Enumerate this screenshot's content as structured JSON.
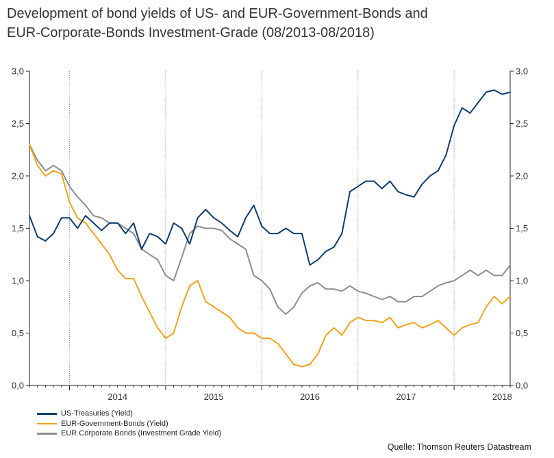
{
  "title": {
    "line1": "Development of bond yields of US- and EUR-Government-Bonds and",
    "line2": "EUR-Corporate-Bonds Investment-Grade (08/2013-08/2018)"
  },
  "source": "Quelle: Thomson Reuters Datastream",
  "chart_data": {
    "type": "line",
    "title": "Development of bond yields of US- and EUR-Government-Bonds and EUR-Corporate-Bonds Investment-Grade (08/2013-08/2018)",
    "xlabel": "",
    "ylabel": "",
    "x_ticks": [
      "2014",
      "2015",
      "2016",
      "2017",
      "2018"
    ],
    "y_ticks": [
      "0,0",
      "0,5",
      "1,0",
      "1,5",
      "2,0",
      "2,5",
      "3,0"
    ],
    "ylim": [
      0,
      3
    ],
    "xlim": [
      "2013-08",
      "2018-08"
    ],
    "grid": "vertical dotted lines at year boundaries",
    "dual_y_axis": true,
    "legend_position": "bottom-left",
    "colors": {
      "us": "#0b3a6e",
      "eur_gov": "#f2a31c",
      "eur_corp": "#8c8c8c",
      "axis": "#222222",
      "grid": "#999999"
    },
    "x": [
      "2013-08",
      "2013-09",
      "2013-10",
      "2013-11",
      "2013-12",
      "2014-01",
      "2014-02",
      "2014-03",
      "2014-04",
      "2014-05",
      "2014-06",
      "2014-07",
      "2014-08",
      "2014-09",
      "2014-10",
      "2014-11",
      "2014-12",
      "2015-01",
      "2015-02",
      "2015-03",
      "2015-04",
      "2015-05",
      "2015-06",
      "2015-07",
      "2015-08",
      "2015-09",
      "2015-10",
      "2015-11",
      "2015-12",
      "2016-01",
      "2016-02",
      "2016-03",
      "2016-04",
      "2016-05",
      "2016-06",
      "2016-07",
      "2016-08",
      "2016-09",
      "2016-10",
      "2016-11",
      "2016-12",
      "2017-01",
      "2017-02",
      "2017-03",
      "2017-04",
      "2017-05",
      "2017-06",
      "2017-07",
      "2017-08",
      "2017-09",
      "2017-10",
      "2017-11",
      "2017-12",
      "2018-01",
      "2018-02",
      "2018-03",
      "2018-04",
      "2018-05",
      "2018-06",
      "2018-07",
      "2018-08"
    ],
    "series": [
      {
        "name": "US-Treasuries (Yield)",
        "color": "#0b3a6e",
        "values": [
          1.62,
          1.42,
          1.38,
          1.45,
          1.6,
          1.6,
          1.5,
          1.62,
          1.55,
          1.48,
          1.55,
          1.55,
          1.45,
          1.55,
          1.3,
          1.45,
          1.42,
          1.35,
          1.55,
          1.5,
          1.35,
          1.6,
          1.68,
          1.6,
          1.55,
          1.48,
          1.42,
          1.6,
          1.72,
          1.52,
          1.45,
          1.45,
          1.5,
          1.45,
          1.45,
          1.15,
          1.2,
          1.28,
          1.32,
          1.45,
          1.85,
          1.9,
          1.95,
          1.95,
          1.88,
          1.95,
          1.85,
          1.82,
          1.8,
          1.92,
          2.0,
          2.05,
          2.2,
          2.48,
          2.65,
          2.6,
          2.7,
          2.8,
          2.82,
          2.78,
          2.8
        ]
      },
      {
        "name": "EUR-Government-Bonds (Yield)",
        "color": "#f2a31c",
        "values": [
          2.3,
          2.1,
          2.0,
          2.05,
          2.02,
          1.75,
          1.6,
          1.55,
          1.45,
          1.35,
          1.25,
          1.1,
          1.02,
          1.02,
          0.85,
          0.7,
          0.55,
          0.45,
          0.5,
          0.75,
          0.95,
          1.0,
          0.8,
          0.75,
          0.7,
          0.65,
          0.55,
          0.5,
          0.5,
          0.45,
          0.45,
          0.4,
          0.3,
          0.2,
          0.18,
          0.2,
          0.3,
          0.48,
          0.55,
          0.48,
          0.6,
          0.65,
          0.62,
          0.62,
          0.6,
          0.65,
          0.55,
          0.58,
          0.6,
          0.55,
          0.58,
          0.62,
          0.55,
          0.48,
          0.55,
          0.58,
          0.6,
          0.75,
          0.85,
          0.78,
          0.85
        ]
      },
      {
        "name": "EUR Corporate Bonds (Investment Grade Yield)",
        "color": "#8c8c8c",
        "values": [
          2.3,
          2.15,
          2.05,
          2.1,
          2.05,
          1.9,
          1.8,
          1.72,
          1.62,
          1.6,
          1.55,
          1.55,
          1.5,
          1.45,
          1.3,
          1.25,
          1.2,
          1.05,
          1.0,
          1.22,
          1.45,
          1.52,
          1.5,
          1.5,
          1.48,
          1.4,
          1.35,
          1.3,
          1.05,
          1.0,
          0.92,
          0.75,
          0.68,
          0.75,
          0.88,
          0.95,
          0.98,
          0.92,
          0.92,
          0.9,
          0.95,
          0.9,
          0.88,
          0.85,
          0.82,
          0.85,
          0.8,
          0.8,
          0.85,
          0.85,
          0.9,
          0.95,
          0.98,
          1.0,
          1.05,
          1.1,
          1.05,
          1.1,
          1.05,
          1.05,
          1.15
        ]
      }
    ]
  }
}
